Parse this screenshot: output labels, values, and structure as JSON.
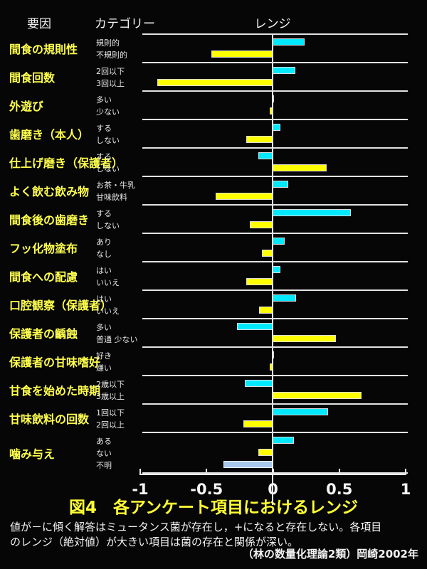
{
  "header": {
    "factor": "要因",
    "category": "カテゴリー",
    "range": "レンジ"
  },
  "colors": {
    "background": "#060606",
    "bar_cyan": "#00e9ff",
    "bar_yellow": "#ffff00",
    "bar_lightblue": "#a9c9ec",
    "factor_label": "#ffff4d",
    "category_label": "#e6e6e6",
    "axis": "#eeeeee",
    "title": "#ffff33",
    "caption": "#f2f2f2"
  },
  "chart_data": {
    "type": "bar",
    "orientation": "horizontal",
    "title": "図4　各アンケート項目におけるレンジ",
    "xlabel": "",
    "ylabel": "",
    "xlim": [
      -1,
      1
    ],
    "x_tick_labels": [
      "-1",
      "-0.5",
      "0",
      "0.5",
      "1"
    ],
    "grid": false,
    "legend": "none",
    "groups": [
      {
        "factor": "間食の規則性",
        "bars": [
          {
            "label": "規則的",
            "value": 0.24,
            "color": "cyan"
          },
          {
            "label": "不規則的",
            "value": -0.46,
            "color": "yellow"
          }
        ]
      },
      {
        "factor": "間食回数",
        "bars": [
          {
            "label": "2回以下",
            "value": 0.17,
            "color": "cyan"
          },
          {
            "label": "3回以上",
            "value": -0.87,
            "color": "yellow"
          }
        ]
      },
      {
        "factor": "外遊び",
        "bars": [
          {
            "label": "多い",
            "value": 0.01,
            "color": "cyan"
          },
          {
            "label": "少ない",
            "value": -0.02,
            "color": "yellow"
          }
        ]
      },
      {
        "factor": "歯磨き（本人）",
        "bars": [
          {
            "label": "する",
            "value": 0.06,
            "color": "cyan"
          },
          {
            "label": "しない",
            "value": -0.2,
            "color": "yellow"
          }
        ]
      },
      {
        "factor": "仕上げ磨き（保護者）",
        "bars": [
          {
            "label": "する",
            "value": -0.11,
            "color": "cyan"
          },
          {
            "label": "しない",
            "value": 0.41,
            "color": "yellow"
          }
        ]
      },
      {
        "factor": "よく飲む飲み物",
        "bars": [
          {
            "label": "お茶・牛乳",
            "value": 0.12,
            "color": "cyan"
          },
          {
            "label": "甘味飲料",
            "value": -0.43,
            "color": "yellow"
          }
        ]
      },
      {
        "factor": "間食後の歯磨き",
        "bars": [
          {
            "label": "する",
            "value": 0.59,
            "color": "cyan"
          },
          {
            "label": "しない",
            "value": -0.17,
            "color": "yellow"
          }
        ]
      },
      {
        "factor": "フッ化物塗布",
        "bars": [
          {
            "label": "あり",
            "value": 0.09,
            "color": "cyan"
          },
          {
            "label": "なし",
            "value": -0.08,
            "color": "yellow"
          }
        ]
      },
      {
        "factor": "間食への配慮",
        "bars": [
          {
            "label": "はい",
            "value": 0.06,
            "color": "cyan"
          },
          {
            "label": "いいえ",
            "value": -0.2,
            "color": "yellow"
          }
        ]
      },
      {
        "factor": "口腔観察（保護者）",
        "bars": [
          {
            "label": "はい",
            "value": 0.18,
            "color": "cyan"
          },
          {
            "label": "いいえ",
            "value": -0.1,
            "color": "yellow"
          }
        ]
      },
      {
        "factor": "保護者の齲蝕",
        "bars": [
          {
            "label": "多い",
            "value": -0.27,
            "color": "cyan"
          },
          {
            "label": "普通 少ない",
            "value": 0.48,
            "color": "yellow"
          }
        ]
      },
      {
        "factor": "保護者の甘味嗜好",
        "bars": [
          {
            "label": "好き",
            "value": 0.01,
            "color": "cyan"
          },
          {
            "label": "嫌い",
            "value": -0.02,
            "color": "yellow"
          }
        ]
      },
      {
        "factor": "甘食を始めた時期",
        "bars": [
          {
            "label": "2歳以下",
            "value": -0.21,
            "color": "cyan"
          },
          {
            "label": "3歳以上",
            "value": 0.67,
            "color": "yellow"
          }
        ]
      },
      {
        "factor": "甘味飲料の回数",
        "bars": [
          {
            "label": "1回以下",
            "value": 0.42,
            "color": "cyan"
          },
          {
            "label": "2回以上",
            "value": -0.22,
            "color": "yellow"
          }
        ]
      },
      {
        "factor": "噛み与え",
        "bars": [
          {
            "label": "ある",
            "value": 0.16,
            "color": "cyan"
          },
          {
            "label": "ない",
            "value": -0.11,
            "color": "yellow"
          },
          {
            "label": "不明",
            "value": -0.37,
            "color": "lightblue"
          }
        ]
      }
    ]
  },
  "footer": {
    "caption_line1": "値が－に傾く解答はミュータンス菌が存在し，+になると存在しない。各項目",
    "caption_line2": "のレンジ（絶対値）が大きい項目は菌の存在と関係が深い。",
    "credit": "（林の数量化理論2類）岡崎2002年"
  }
}
